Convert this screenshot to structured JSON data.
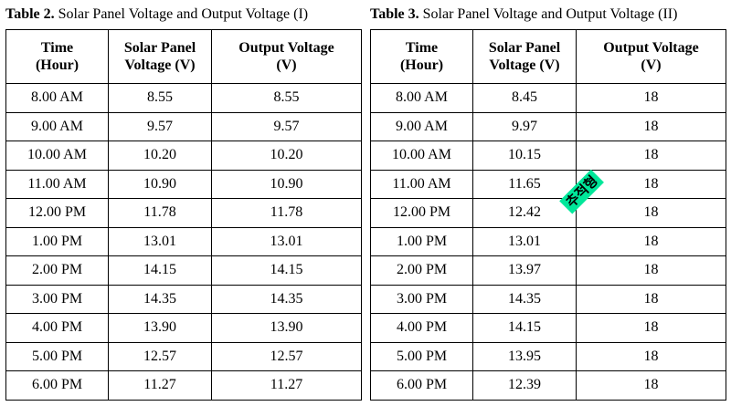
{
  "table_left": {
    "caption_bold": "Table 2.",
    "caption_text": "Solar Panel Voltage and Output Voltage (I)",
    "headers": [
      {
        "line1": "Time",
        "line2": "(Hour)"
      },
      {
        "line1": "Solar Panel",
        "line2": "Voltage (V)"
      },
      {
        "line1": "Output Voltage",
        "line2": "(V)"
      }
    ],
    "rows": [
      [
        "8.00 AM",
        "8.55",
        "8.55"
      ],
      [
        "9.00 AM",
        "9.57",
        "9.57"
      ],
      [
        "10.00 AM",
        "10.20",
        "10.20"
      ],
      [
        "11.00 AM",
        "10.90",
        "10.90"
      ],
      [
        "12.00 PM",
        "11.78",
        "11.78"
      ],
      [
        "1.00 PM",
        "13.01",
        "13.01"
      ],
      [
        "2.00 PM",
        "14.15",
        "14.15"
      ],
      [
        "3.00 PM",
        "14.35",
        "14.35"
      ],
      [
        "4.00 PM",
        "13.90",
        "13.90"
      ],
      [
        "5.00 PM",
        "12.57",
        "12.57"
      ],
      [
        "6.00 PM",
        "11.27",
        "11.27"
      ]
    ]
  },
  "table_right": {
    "caption_bold": "Table 3.",
    "caption_text": "Solar Panel Voltage and Output Voltage (II)",
    "headers": [
      {
        "line1": "Time",
        "line2": "(Hour)"
      },
      {
        "line1": "Solar Panel",
        "line2": "Voltage (V)"
      },
      {
        "line1": "Output Voltage",
        "line2": "(V)"
      }
    ],
    "rows": [
      [
        "8.00 AM",
        "8.45",
        "18"
      ],
      [
        "9.00 AM",
        "9.97",
        "18"
      ],
      [
        "10.00 AM",
        "10.15",
        "18"
      ],
      [
        "11.00 AM",
        "11.65",
        "18"
      ],
      [
        "12.00 PM",
        "12.42",
        "18"
      ],
      [
        "1.00 PM",
        "13.01",
        "18"
      ],
      [
        "2.00 PM",
        "13.97",
        "18"
      ],
      [
        "3.00 PM",
        "14.35",
        "18"
      ],
      [
        "4.00 PM",
        "14.15",
        "18"
      ],
      [
        "5.00 PM",
        "13.95",
        "18"
      ],
      [
        "6.00 PM",
        "12.39",
        "18"
      ]
    ]
  },
  "stamp_text": "추적형",
  "stamp_color": "#00e79a"
}
